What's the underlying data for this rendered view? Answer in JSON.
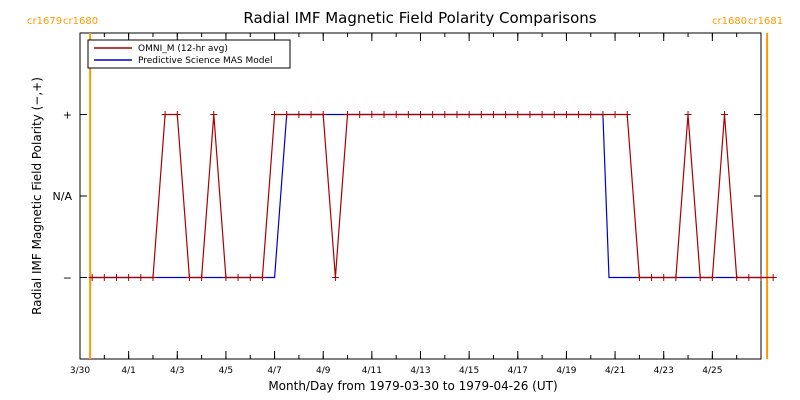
{
  "chart_data": {
    "type": "line",
    "title": "Radial IMF Magnetic Field Polarity Comparisons",
    "xlabel": "Month/Day from 1979-03-30 to 1979-04-26 (UT)",
    "ylabel": "Radial IMF Magnetic Field Polarity (−,+)",
    "x_ticks": [
      "3/30",
      "4/1",
      "4/3",
      "4/5",
      "4/7",
      "4/9",
      "4/11",
      "4/13",
      "4/15",
      "4/17",
      "4/19",
      "4/21",
      "4/23",
      "4/25"
    ],
    "y_ticks": [
      "+",
      "N/A",
      "−"
    ],
    "y_levels": {
      "+": 1,
      "N/A": 0,
      "−": -1
    },
    "ylim": [
      -2,
      2
    ],
    "xlim": [
      "1979-03-30",
      "1979-04-27"
    ],
    "cr_labels": {
      "left": [
        "cr1679",
        "cr1680"
      ],
      "right": [
        "cr1680",
        "cr1681"
      ]
    },
    "cr_boundaries": [
      "1979-03-30T10:00",
      "1979-04-27T06:00"
    ],
    "cr_line_color": "#ff9900",
    "legend_position": "top-left",
    "series": [
      {
        "name": "OMNI_M (12-hr avg)",
        "color": "#aa0000",
        "x": [
          "1979-03-30T12:00",
          "1979-03-31T00:00",
          "1979-03-31T12:00",
          "1979-04-01T00:00",
          "1979-04-01T12:00",
          "1979-04-02T00:00",
          "1979-04-02T12:00",
          "1979-04-03T00:00",
          "1979-04-03T12:00",
          "1979-04-04T00:00",
          "1979-04-04T12:00",
          "1979-04-05T00:00",
          "1979-04-05T12:00",
          "1979-04-06T00:00",
          "1979-04-06T12:00",
          "1979-04-07T00:00",
          "1979-04-07T12:00",
          "1979-04-08T00:00",
          "1979-04-08T12:00",
          "1979-04-09T00:00",
          "1979-04-09T12:00",
          "1979-04-10T00:00",
          "1979-04-10T12:00",
          "1979-04-11T00:00",
          "1979-04-11T12:00",
          "1979-04-12T00:00",
          "1979-04-12T12:00",
          "1979-04-13T00:00",
          "1979-04-13T12:00",
          "1979-04-14T00:00",
          "1979-04-14T12:00",
          "1979-04-15T00:00",
          "1979-04-15T12:00",
          "1979-04-16T00:00",
          "1979-04-16T12:00",
          "1979-04-17T00:00",
          "1979-04-17T12:00",
          "1979-04-18T00:00",
          "1979-04-18T12:00",
          "1979-04-19T00:00",
          "1979-04-19T12:00",
          "1979-04-20T00:00",
          "1979-04-20T12:00",
          "1979-04-21T00:00",
          "1979-04-21T12:00",
          "1979-04-22T00:00",
          "1979-04-22T12:00",
          "1979-04-23T00:00",
          "1979-04-23T12:00",
          "1979-04-24T00:00",
          "1979-04-24T12:00",
          "1979-04-25T00:00",
          "1979-04-25T12:00",
          "1979-04-26T00:00",
          "1979-04-26T12:00",
          "1979-04-27T00:00",
          "1979-04-27T12:00"
        ],
        "values": [
          -1,
          -1,
          -1,
          -1,
          -1,
          -1,
          1,
          1,
          -1,
          -1,
          1,
          -1,
          -1,
          -1,
          -1,
          1,
          1,
          1,
          1,
          1,
          -1,
          1,
          1,
          1,
          1,
          1,
          1,
          1,
          1,
          1,
          1,
          1,
          1,
          1,
          1,
          1,
          1,
          1,
          1,
          1,
          1,
          1,
          1,
          1,
          1,
          -1,
          -1,
          -1,
          -1,
          1,
          -1,
          -1,
          1,
          -1,
          -1,
          -1,
          -1
        ]
      },
      {
        "name": "Predictive Science MAS Model",
        "color": "#0000cc",
        "x": [
          "1979-03-30T10:00",
          "1979-04-07T00:00",
          "1979-04-07T12:00",
          "1979-04-20T12:00",
          "1979-04-20T18:00",
          "1979-04-27T06:00"
        ],
        "values": [
          -1,
          -1,
          1,
          1,
          -1,
          -1
        ]
      }
    ]
  }
}
